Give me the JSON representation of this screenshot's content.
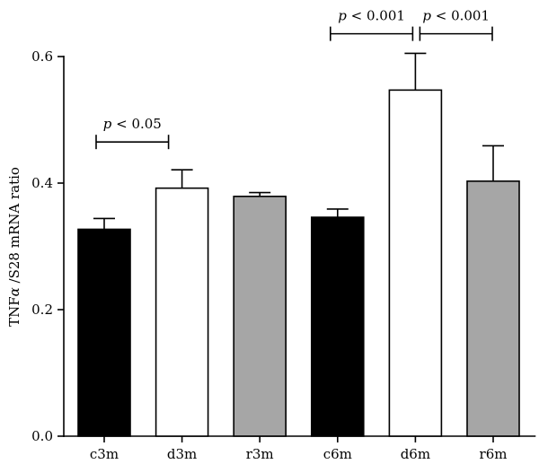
{
  "chart_data": {
    "type": "bar",
    "categories": [
      "c3m",
      "d3m",
      "r3m",
      "c6m",
      "d6m",
      "r6m"
    ],
    "values": [
      0.327,
      0.392,
      0.379,
      0.346,
      0.547,
      0.403
    ],
    "errors": [
      0.017,
      0.029,
      0.006,
      0.013,
      0.058,
      0.056
    ],
    "colors": [
      "#000000",
      "#ffffff",
      "#a6a6a6",
      "#000000",
      "#ffffff",
      "#a6a6a6"
    ],
    "edge_color": "#000000",
    "title": "",
    "xlabel": "",
    "ylabel_main": "TNF",
    "ylabel_symbol": "α",
    "ylabel_rest": " /S28 mRNA ratio",
    "ylim": [
      0,
      0.6
    ],
    "yticks": [
      0.0,
      0.2,
      0.4,
      0.6
    ],
    "ytick_labels": [
      "0.0",
      "0.2",
      "0.4",
      "0.6"
    ],
    "grid": false,
    "legend": "none",
    "annotations": [
      {
        "from": 0,
        "to": 1,
        "y": 0.465,
        "p_letter": "p",
        "text": " < 0.05"
      },
      {
        "from": 3,
        "to": 4,
        "y": 0.636,
        "p_letter": "p",
        "text": " < 0.001"
      },
      {
        "from": 4,
        "to": 5,
        "y": 0.636,
        "p_letter": "p",
        "text": " < 0.001"
      }
    ]
  }
}
